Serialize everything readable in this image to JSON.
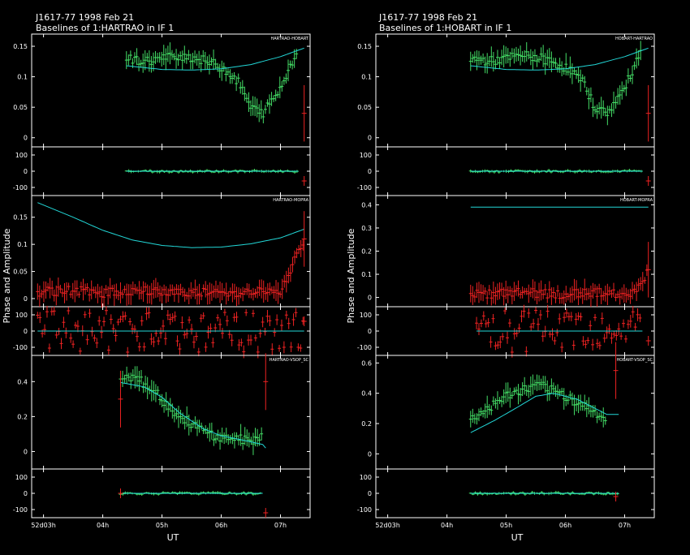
{
  "colors": {
    "background": "#000000",
    "frame": "#ffffff",
    "model": "#22d8d8",
    "good": "#44dd66",
    "flagged": "#ee2222"
  },
  "shared": {
    "ylabel": "Phase and Amplitude",
    "xlabel": "UT",
    "xticks": [
      "52d03h",
      "04h",
      "05h",
      "06h",
      "07h"
    ]
  },
  "columns": [
    {
      "title_line1": "J1617-77  1998 Feb 21",
      "title_line2": "Baselines of 1:HARTRAO in IF 1",
      "panels": [
        {
          "label": "HARTRAO-HOBART",
          "amp_ticks": [
            "0",
            "0.05",
            "0.1",
            "0.15"
          ],
          "phase_ticks": [
            "100",
            "0",
            "-100"
          ]
        },
        {
          "label": "HARTRAO-MOPRA",
          "amp_ticks": [
            "0",
            "0.05",
            "0.1",
            "0.15"
          ],
          "phase_ticks": [
            "100",
            "0",
            "-100"
          ]
        },
        {
          "label": "HARTRAO-VSOP_SC",
          "amp_ticks": [
            "0",
            "0.2",
            "0.4"
          ],
          "phase_ticks": [
            "100",
            "0",
            "-100"
          ]
        }
      ]
    },
    {
      "title_line1": "J1617-77  1998 Feb 21",
      "title_line2": "Baselines of 1:HOBART in IF 1",
      "panels": [
        {
          "label": "HOBART-HARTRAO",
          "amp_ticks": [
            "0",
            "0.05",
            "0.1",
            "0.15"
          ],
          "phase_ticks": [
            "100",
            "0",
            "-100"
          ]
        },
        {
          "label": "HOBART-MOPRA",
          "amp_ticks": [
            "0",
            "0.1",
            "0.2",
            "0.3",
            "0.4"
          ],
          "phase_ticks": [
            "100",
            "0",
            "-100"
          ]
        },
        {
          "label": "HOBART-VSOP_SC",
          "amp_ticks": [
            "0",
            "0.2",
            "0.4",
            "0.6"
          ],
          "phase_ticks": [
            "100",
            "0",
            "-100"
          ]
        }
      ]
    }
  ],
  "chart_data": [
    {
      "type": "scatter",
      "title": "Baselines of 1:HARTRAO in IF 1",
      "xlabel": "UT",
      "ylabel": "Phase and Amplitude",
      "x_range_hours": [
        2.8,
        7.5
      ],
      "panels": [
        {
          "baseline": "HARTRAO-HOBART",
          "amp_range": [
            -0.015,
            0.17
          ],
          "phase_range": [
            -150,
            150
          ],
          "amp_series": {
            "name": "",
            "x": [
              4.4,
              4.7,
              5.0,
              5.3,
              5.6,
              5.9,
              6.1,
              6.3,
              6.5,
              6.7,
              7.0,
              7.3
            ],
            "y": [
              0.13,
              0.125,
              0.13,
              0.135,
              0.13,
              0.12,
              0.11,
              0.09,
              0.05,
              0.04,
              0.08,
              0.15
            ]
          },
          "amp_model": {
            "x": [
              4.4,
              5.0,
              5.5,
              6.0,
              6.5,
              7.0,
              7.4
            ],
            "y": [
              0.118,
              0.112,
              0.111,
              0.113,
              0.12,
              0.133,
              0.147
            ]
          },
          "phase_series": {
            "x": [
              4.4,
              5.0,
              5.5,
              6.0,
              6.5,
              7.0,
              7.3
            ],
            "y": [
              0,
              0,
              0,
              0,
              0,
              0,
              0
            ]
          },
          "flagged": {
            "x": [
              7.4
            ],
            "amp": [
              0.04
            ],
            "phase": [
              -60
            ]
          }
        },
        {
          "baseline": "HARTRAO-MOPRA",
          "amp_range": [
            -0.015,
            0.19
          ],
          "phase_range": [
            -150,
            150
          ],
          "amp_series": {
            "name": "",
            "x": [
              2.9,
              3.5,
              4.0,
              4.5,
              5.0,
              5.5,
              6.0,
              6.5,
              7.0,
              7.4
            ],
            "y": [
              0.012,
              0.015,
              0.01,
              0.014,
              0.012,
              0.013,
              0.01,
              0.014,
              0.012,
              0.11
            ]
          },
          "amp_model": {
            "x": [
              2.9,
              3.5,
              4.0,
              4.5,
              5.0,
              5.5,
              6.0,
              6.5,
              7.0,
              7.4
            ],
            "y": [
              0.177,
              0.15,
              0.126,
              0.108,
              0.098,
              0.094,
              0.095,
              0.101,
              0.112,
              0.128
            ]
          },
          "phase_series": {
            "x": [
              2.9,
              3.5,
              4.0,
              4.5,
              5.0,
              5.5,
              6.0,
              6.5,
              7.0,
              7.4
            ],
            "y": [
              40,
              -60,
              20,
              -100,
              60,
              -20,
              80,
              -40,
              10,
              60
            ]
          },
          "flagged": {
            "x": [
              7.4
            ],
            "amp": [
              0.11
            ],
            "phase": [
              60
            ]
          }
        },
        {
          "baseline": "HARTRAO-VSOP_SC",
          "amp_range": [
            -0.1,
            0.55
          ],
          "phase_range": [
            -150,
            150
          ],
          "amp_series": {
            "name": "",
            "x": [
              4.3,
              4.5,
              4.8,
              5.0,
              5.3,
              5.6,
              5.9,
              6.2,
              6.5,
              6.7
            ],
            "y": [
              0.4,
              0.43,
              0.37,
              0.3,
              0.2,
              0.14,
              0.08,
              0.08,
              0.06,
              0.1
            ]
          },
          "amp_model": {
            "x": [
              4.3,
              4.7,
              5.0,
              5.3,
              5.7,
              6.0,
              6.3,
              6.7,
              6.75
            ],
            "y": [
              0.395,
              0.37,
              0.31,
              0.22,
              0.13,
              0.09,
              0.07,
              0.04,
              0.02
            ]
          },
          "phase_series": {
            "x": [
              4.3,
              4.8,
              5.3,
              5.8,
              6.3,
              6.7
            ],
            "y": [
              0,
              0,
              0,
              0,
              0,
              0
            ]
          },
          "flagged": {
            "x": [
              4.3,
              6.75
            ],
            "amp": [
              0.3,
              0.4
            ],
            "phase": [
              0,
              -120
            ]
          }
        }
      ]
    },
    {
      "type": "scatter",
      "title": "Baselines of 1:HOBART in IF 1",
      "xlabel": "UT",
      "ylabel": "Phase and Amplitude",
      "x_range_hours": [
        2.8,
        7.5
      ],
      "panels": [
        {
          "baseline": "HOBART-HARTRAO",
          "amp_range": [
            -0.015,
            0.17
          ],
          "phase_range": [
            -150,
            150
          ],
          "amp_series": {
            "name": "",
            "x": [
              4.4,
              4.7,
              5.0,
              5.3,
              5.6,
              5.9,
              6.1,
              6.3,
              6.5,
              6.7,
              7.0,
              7.3
            ],
            "y": [
              0.13,
              0.125,
              0.13,
              0.135,
              0.13,
              0.12,
              0.11,
              0.09,
              0.05,
              0.04,
              0.08,
              0.15
            ]
          },
          "amp_model": {
            "x": [
              4.4,
              5.0,
              5.5,
              6.0,
              6.5,
              7.0,
              7.4
            ],
            "y": [
              0.118,
              0.112,
              0.111,
              0.113,
              0.12,
              0.133,
              0.147
            ]
          },
          "phase_series": {
            "x": [
              4.4,
              5.0,
              5.5,
              6.0,
              6.5,
              7.0,
              7.3
            ],
            "y": [
              0,
              0,
              0,
              0,
              0,
              0,
              0
            ]
          },
          "flagged": {
            "x": [
              7.4
            ],
            "amp": [
              0.04
            ],
            "phase": [
              -60
            ]
          }
        },
        {
          "baseline": "HOBART-MOPRA",
          "amp_range": [
            -0.04,
            0.44
          ],
          "phase_range": [
            -150,
            150
          ],
          "amp_series": {
            "name": "",
            "x": [
              4.4,
              4.8,
              5.2,
              5.6,
              6.0,
              6.4,
              6.8,
              7.2,
              7.4
            ],
            "y": [
              0.02,
              0.015,
              0.02,
              0.018,
              0.015,
              0.02,
              0.017,
              0.02,
              0.12
            ]
          },
          "amp_model": {
            "x": [
              4.4,
              7.4
            ],
            "y": [
              0.39,
              0.39
            ]
          },
          "phase_series": {
            "x": [
              4.5,
              4.9,
              5.3,
              5.7,
              6.1,
              6.5,
              6.9,
              7.3
            ],
            "y": [
              60,
              -60,
              20,
              -100,
              40,
              -20,
              80,
              -50
            ]
          },
          "flagged": {
            "x": [
              7.4
            ],
            "amp": [
              0.12
            ],
            "phase": [
              -60
            ]
          }
        },
        {
          "baseline": "HOBART-VSOP_SC",
          "amp_range": [
            -0.1,
            0.65
          ],
          "phase_range": [
            -150,
            150
          ],
          "amp_series": {
            "name": "",
            "x": [
              4.4,
              4.7,
              5.0,
              5.3,
              5.6,
              5.9,
              6.1,
              6.4,
              6.7
            ],
            "y": [
              0.22,
              0.3,
              0.38,
              0.42,
              0.45,
              0.4,
              0.36,
              0.3,
              0.22
            ]
          },
          "amp_model": {
            "x": [
              4.4,
              4.8,
              5.2,
              5.5,
              5.8,
              6.2,
              6.5,
              6.7,
              6.9
            ],
            "y": [
              0.14,
              0.22,
              0.31,
              0.38,
              0.4,
              0.36,
              0.3,
              0.26,
              0.26
            ]
          },
          "phase_series": {
            "x": [
              4.4,
              5.0,
              5.5,
              6.0,
              6.5,
              6.9
            ],
            "y": [
              0,
              0,
              0,
              0,
              0,
              0
            ]
          },
          "flagged": {
            "x": [
              6.85
            ],
            "amp": [
              0.55
            ],
            "phase": [
              -20
            ]
          }
        }
      ]
    }
  ]
}
